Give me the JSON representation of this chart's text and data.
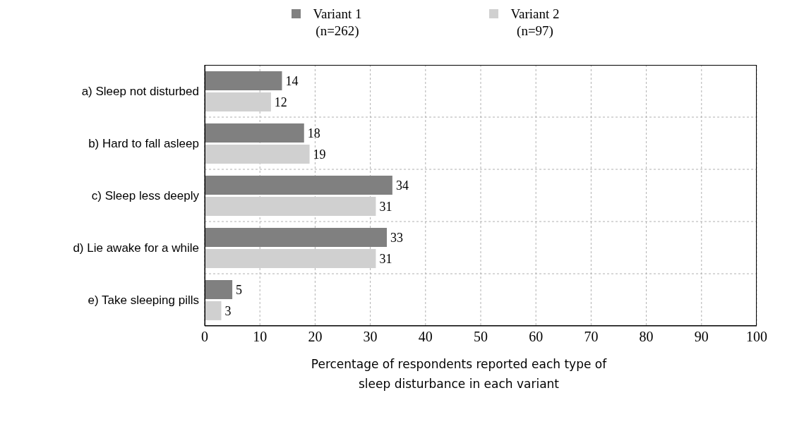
{
  "chart_data": {
    "type": "bar",
    "orientation": "horizontal",
    "xlabel": "Percentage of respondents reported each type of sleep disturbance in each variant",
    "categories": [
      "a) Sleep not disturbed",
      "b) Hard to fall asleep",
      "c) Sleep less deeply",
      "d) Lie awake for a while",
      "e) Take sleeping pills"
    ],
    "series": [
      {
        "name": "Variant 1 (n=262)",
        "color": "#808080",
        "values": [
          14,
          18,
          34,
          33,
          5
        ]
      },
      {
        "name": "Variant 2 (n=97)",
        "color": "#d0d0d0",
        "values": [
          12,
          19,
          31,
          31,
          3
        ]
      }
    ],
    "xlim": [
      0,
      100
    ],
    "xticks": [
      0,
      10,
      20,
      30,
      40,
      50,
      60,
      70,
      80,
      90,
      100
    ],
    "grid": true,
    "legend": "top",
    "data_labels": true
  }
}
